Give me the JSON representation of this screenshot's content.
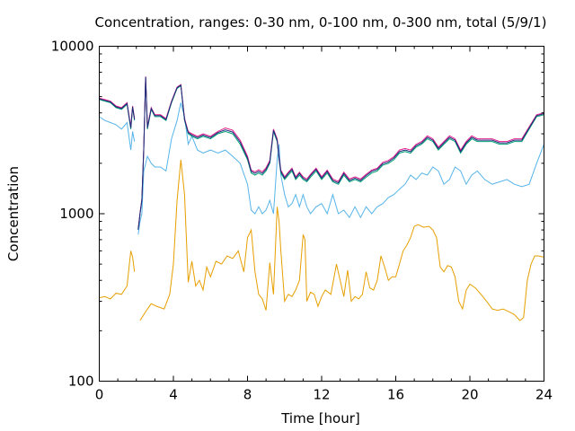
{
  "chart_data": {
    "type": "line",
    "title": "Concentration, ranges: 0-30 nm, 0-100 nm, 0-300 nm, total (5/9/1)",
    "xlabel": "Time [hour]",
    "ylabel": "Concentration",
    "xlim": [
      0,
      24
    ],
    "ylim": [
      100,
      10000
    ],
    "yscale": "log",
    "x_ticks": [
      0,
      4,
      8,
      12,
      16,
      20,
      24
    ],
    "y_ticks": [
      100,
      1000,
      10000
    ],
    "x_tick_labels": [
      "0",
      "4",
      "8",
      "12",
      "16",
      "20",
      "24"
    ],
    "y_tick_labels": [
      "100",
      "1000",
      "10000"
    ],
    "grid": false,
    "legend": "none",
    "series": [
      {
        "color": "#e69f00",
        "x": [
          0,
          0.3,
          0.6,
          0.9,
          1.2,
          1.5,
          1.7,
          1.8,
          1.9,
          2.0,
          2.2,
          2.5,
          2.8,
          3.1,
          3.5,
          3.8,
          4.0,
          4.2,
          4.4,
          4.6,
          4.8,
          5.0,
          5.2,
          5.4,
          5.6,
          5.8,
          6.0,
          6.3,
          6.6,
          6.9,
          7.2,
          7.5,
          7.8,
          8.0,
          8.2,
          8.4,
          8.6,
          8.8,
          9.0,
          9.2,
          9.4,
          9.6,
          9.7,
          9.8,
          10.0,
          10.2,
          10.4,
          10.6,
          10.8,
          11.0,
          11.1,
          11.2,
          11.4,
          11.6,
          11.8,
          12.0,
          12.2,
          12.5,
          12.8,
          13.0,
          13.2,
          13.4,
          13.6,
          13.8,
          14.0,
          14.2,
          14.4,
          14.6,
          14.8,
          15.0,
          15.2,
          15.4,
          15.6,
          15.8,
          16.0,
          16.2,
          16.4,
          16.6,
          16.8,
          17.0,
          17.2,
          17.5,
          17.8,
          18.0,
          18.2,
          18.4,
          18.6,
          18.8,
          19.0,
          19.2,
          19.4,
          19.6,
          19.8,
          20.0,
          20.3,
          20.6,
          20.9,
          21.2,
          21.5,
          21.8,
          22.1,
          22.4,
          22.7,
          22.9,
          23.1,
          23.3,
          23.5,
          23.7,
          24.0
        ],
        "y": [
          315,
          320,
          310,
          335,
          330,
          370,
          600,
          550,
          450,
          null,
          230,
          260,
          290,
          280,
          270,
          330,
          500,
          1200,
          2100,
          1300,
          390,
          520,
          370,
          400,
          350,
          480,
          420,
          520,
          500,
          560,
          540,
          600,
          450,
          720,
          800,
          450,
          330,
          310,
          265,
          510,
          330,
          1100,
          900,
          600,
          300,
          330,
          320,
          350,
          400,
          750,
          700,
          300,
          340,
          330,
          280,
          320,
          350,
          330,
          500,
          400,
          320,
          460,
          300,
          320,
          310,
          330,
          450,
          360,
          350,
          400,
          560,
          480,
          400,
          420,
          420,
          500,
          600,
          650,
          720,
          840,
          860,
          830,
          840,
          800,
          720,
          480,
          450,
          490,
          480,
          420,
          300,
          270,
          350,
          380,
          360,
          330,
          300,
          270,
          265,
          270,
          260,
          250,
          230,
          240,
          400,
          500,
          560,
          560,
          550
        ]
      },
      {
        "color": "#56b4e9",
        "x": [
          0,
          0.3,
          0.6,
          0.9,
          1.2,
          1.5,
          1.7,
          1.8,
          1.9,
          2.0,
          2.1,
          2.2,
          2.3,
          2.4,
          2.6,
          2.8,
          3.0,
          3.3,
          3.6,
          3.9,
          4.2,
          4.4,
          4.6,
          4.8,
          5.0,
          5.3,
          5.6,
          6.0,
          6.4,
          6.8,
          7.2,
          7.6,
          8.0,
          8.2,
          8.4,
          8.6,
          8.8,
          9.0,
          9.2,
          9.4,
          9.6,
          9.7,
          9.8,
          10.0,
          10.2,
          10.4,
          10.6,
          10.8,
          11.0,
          11.2,
          11.4,
          11.7,
          12.0,
          12.3,
          12.6,
          12.9,
          13.2,
          13.5,
          13.8,
          14.1,
          14.4,
          14.7,
          15.0,
          15.3,
          15.6,
          15.9,
          16.2,
          16.5,
          16.8,
          17.1,
          17.4,
          17.7,
          18.0,
          18.3,
          18.6,
          18.9,
          19.2,
          19.5,
          19.8,
          20.1,
          20.4,
          20.8,
          21.2,
          21.6,
          22.0,
          22.4,
          22.8,
          23.2,
          23.6,
          24.0
        ],
        "y": [
          3800,
          3600,
          3500,
          3400,
          3200,
          3500,
          2400,
          3100,
          2700,
          null,
          750,
          900,
          1000,
          1800,
          2200,
          2000,
          1900,
          1900,
          1800,
          2800,
          3600,
          4600,
          3800,
          2600,
          2900,
          2400,
          2300,
          2400,
          2300,
          2400,
          2200,
          2000,
          1500,
          1050,
          1000,
          1100,
          1000,
          1050,
          1200,
          1000,
          2100,
          2600,
          1700,
          1300,
          1100,
          1150,
          1300,
          1100,
          1300,
          1100,
          1000,
          1100,
          1150,
          1000,
          1300,
          1000,
          1050,
          950,
          1100,
          950,
          1100,
          1000,
          1100,
          1150,
          1250,
          1300,
          1400,
          1500,
          1700,
          1600,
          1750,
          1700,
          1900,
          1800,
          1500,
          1600,
          1900,
          1800,
          1500,
          1700,
          1800,
          1600,
          1500,
          1550,
          1600,
          1500,
          1450,
          1500,
          2000,
          2600
        ]
      },
      {
        "color": "#009e73",
        "x": [
          0,
          0.3,
          0.6,
          0.9,
          1.2,
          1.5,
          1.7,
          1.8,
          1.9,
          2.0,
          2.1,
          2.2,
          2.3,
          2.4,
          2.5,
          2.6,
          2.8,
          3.0,
          3.3,
          3.6,
          3.9,
          4.2,
          4.4,
          4.6,
          4.8,
          5.0,
          5.3,
          5.6,
          6.0,
          6.4,
          6.8,
          7.2,
          7.6,
          8.0,
          8.2,
          8.4,
          8.6,
          8.8,
          9.0,
          9.2,
          9.4,
          9.6,
          9.7,
          9.8,
          10.0,
          10.2,
          10.4,
          10.6,
          10.8,
          11.0,
          11.2,
          11.4,
          11.7,
          12.0,
          12.3,
          12.6,
          12.9,
          13.2,
          13.5,
          13.8,
          14.1,
          14.4,
          14.7,
          15.0,
          15.3,
          15.6,
          15.9,
          16.2,
          16.5,
          16.8,
          17.1,
          17.4,
          17.7,
          18.0,
          18.3,
          18.6,
          18.9,
          19.2,
          19.5,
          19.8,
          20.1,
          20.4,
          20.8,
          21.2,
          21.6,
          22.0,
          22.4,
          22.8,
          23.2,
          23.6,
          24.0
        ],
        "y": [
          4800,
          4700,
          4600,
          4300,
          4200,
          4500,
          3200,
          4300,
          3600,
          null,
          800,
          1000,
          1200,
          2400,
          6500,
          3200,
          4200,
          3800,
          3800,
          3600,
          4600,
          5600,
          5800,
          3600,
          3000,
          2900,
          2800,
          2900,
          2800,
          3000,
          3100,
          3000,
          2600,
          2100,
          1750,
          1700,
          1750,
          1700,
          1800,
          2000,
          3100,
          2700,
          2100,
          1750,
          1600,
          1700,
          1800,
          1600,
          1700,
          1600,
          1550,
          1650,
          1800,
          1600,
          1750,
          1550,
          1500,
          1700,
          1550,
          1600,
          1550,
          1650,
          1750,
          1800,
          1950,
          2000,
          2100,
          2300,
          2350,
          2300,
          2500,
          2600,
          2800,
          2700,
          2400,
          2600,
          2800,
          2700,
          2300,
          2600,
          2800,
          2700,
          2700,
          2700,
          2600,
          2600,
          2700,
          2700,
          3200,
          3800,
          3900
        ]
      },
      {
        "color": "#e51e8a",
        "x": [
          0,
          0.3,
          0.6,
          0.9,
          1.2,
          1.5,
          1.7,
          1.8,
          1.9,
          2.0,
          2.1,
          2.2,
          2.3,
          2.4,
          2.5,
          2.6,
          2.8,
          3.0,
          3.3,
          3.6,
          3.9,
          4.2,
          4.4,
          4.6,
          4.8,
          5.0,
          5.3,
          5.6,
          6.0,
          6.4,
          6.8,
          7.2,
          7.6,
          8.0,
          8.2,
          8.4,
          8.6,
          8.8,
          9.0,
          9.2,
          9.4,
          9.6,
          9.7,
          9.8,
          10.0,
          10.2,
          10.4,
          10.6,
          10.8,
          11.0,
          11.2,
          11.4,
          11.7,
          12.0,
          12.3,
          12.6,
          12.9,
          13.2,
          13.5,
          13.8,
          14.1,
          14.4,
          14.7,
          15.0,
          15.3,
          15.6,
          15.9,
          16.2,
          16.5,
          16.8,
          17.1,
          17.4,
          17.7,
          18.0,
          18.3,
          18.6,
          18.9,
          19.2,
          19.5,
          19.8,
          20.1,
          20.4,
          20.8,
          21.2,
          21.6,
          22.0,
          22.4,
          22.8,
          23.2,
          23.6,
          24.0
        ],
        "y": [
          4900,
          4800,
          4700,
          4400,
          4300,
          4600,
          3300,
          4400,
          3700,
          null,
          810,
          1010,
          1220,
          2450,
          6600,
          3300,
          4300,
          3900,
          3900,
          3700,
          4700,
          5700,
          5900,
          3700,
          3100,
          3000,
          2900,
          3000,
          2900,
          3100,
          3250,
          3150,
          2750,
          2200,
          1820,
          1780,
          1830,
          1780,
          1880,
          2080,
          3200,
          2800,
          2180,
          1820,
          1660,
          1770,
          1870,
          1660,
          1770,
          1660,
          1610,
          1720,
          1870,
          1660,
          1820,
          1610,
          1560,
          1770,
          1610,
          1660,
          1610,
          1720,
          1820,
          1870,
          2030,
          2080,
          2190,
          2400,
          2450,
          2400,
          2600,
          2700,
          2920,
          2800,
          2500,
          2700,
          2920,
          2800,
          2400,
          2700,
          2920,
          2800,
          2800,
          2800,
          2700,
          2700,
          2800,
          2800,
          3300,
          3900,
          4000
        ]
      },
      {
        "color": "#1a2b7a",
        "x": [
          0,
          0.3,
          0.6,
          0.9,
          1.2,
          1.5,
          1.7,
          1.8,
          1.9,
          2.0,
          2.1,
          2.2,
          2.3,
          2.4,
          2.5,
          2.6,
          2.8,
          3.0,
          3.3,
          3.6,
          3.9,
          4.2,
          4.4,
          4.6,
          4.8,
          5.0,
          5.3,
          5.6,
          6.0,
          6.4,
          6.8,
          7.2,
          7.6,
          8.0,
          8.2,
          8.4,
          8.6,
          8.8,
          9.0,
          9.2,
          9.4,
          9.6,
          9.7,
          9.8,
          10.0,
          10.2,
          10.4,
          10.6,
          10.8,
          11.0,
          11.2,
          11.4,
          11.7,
          12.0,
          12.3,
          12.6,
          12.9,
          13.2,
          13.5,
          13.8,
          14.1,
          14.4,
          14.7,
          15.0,
          15.3,
          15.6,
          15.9,
          16.2,
          16.5,
          16.8,
          17.1,
          17.4,
          17.7,
          18.0,
          18.3,
          18.6,
          18.9,
          19.2,
          19.5,
          19.8,
          20.1,
          20.4,
          20.8,
          21.2,
          21.6,
          22.0,
          22.4,
          22.8,
          23.2,
          23.6,
          24.0
        ],
        "y": [
          4850,
          4750,
          4650,
          4350,
          4250,
          4550,
          3250,
          4350,
          3650,
          null,
          805,
          1005,
          1210,
          2420,
          6550,
          3250,
          4250,
          3850,
          3850,
          3650,
          4650,
          5650,
          5850,
          3650,
          3050,
          2950,
          2850,
          2950,
          2850,
          3050,
          3170,
          3070,
          2680,
          2150,
          1790,
          1740,
          1790,
          1740,
          1840,
          2040,
          3150,
          2750,
          2140,
          1790,
          1630,
          1740,
          1840,
          1630,
          1740,
          1630,
          1580,
          1690,
          1840,
          1630,
          1790,
          1580,
          1530,
          1740,
          1580,
          1630,
          1580,
          1690,
          1790,
          1840,
          1990,
          2040,
          2150,
          2350,
          2400,
          2350,
          2550,
          2650,
          2860,
          2750,
          2450,
          2650,
          2860,
          2750,
          2350,
          2650,
          2860,
          2750,
          2750,
          2750,
          2650,
          2650,
          2750,
          2750,
          3250,
          3850,
          3950
        ]
      }
    ]
  }
}
